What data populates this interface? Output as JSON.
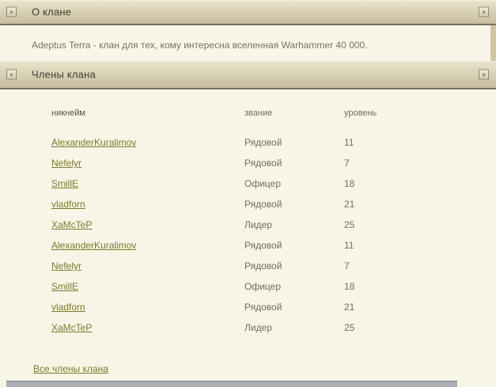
{
  "icons": {
    "close_glyph": "×"
  },
  "colors": {
    "page_background": "#f8f5e6",
    "panel_body": "#f9f6e8",
    "page_edge_tan": "#cfc6a3",
    "header_gradient_top": "#ebe4cd",
    "header_gradient_bottom": "#c7be9d",
    "header_border": "#716f5f",
    "title_text": "#3d3d33",
    "body_text": "#73735f",
    "muted_text": "#6e6e5c",
    "link": "#7a7a2d",
    "bottom_bar": "#a9aeb2"
  },
  "panels": {
    "about": {
      "title": "О клане",
      "description": "Adeptus Terra - клан для тех, кому интересна вселенная Warhammer 40 000."
    },
    "members": {
      "title": "Члены клана",
      "table": {
        "columns": [
          "никнейм",
          "звание",
          "уровень"
        ],
        "rows": [
          {
            "nickname": "AlexanderKuralimov",
            "rank": "Рядовой",
            "level": "11"
          },
          {
            "nickname": "Nefelyr",
            "rank": "Рядовой",
            "level": "7"
          },
          {
            "nickname": "SmillE",
            "rank": "Офицер",
            "level": "18"
          },
          {
            "nickname": "vladforn",
            "rank": "Рядовой",
            "level": "21"
          },
          {
            "nickname": "XaMcTeP",
            "rank": "Лидер",
            "level": "25"
          },
          {
            "nickname": "AlexanderKuralimov",
            "rank": "Рядовой",
            "level": "11"
          },
          {
            "nickname": "Nefelyr",
            "rank": "Рядовой",
            "level": "7"
          },
          {
            "nickname": "SmillE",
            "rank": "Офицер",
            "level": "18"
          },
          {
            "nickname": "vladforn",
            "rank": "Рядовой",
            "level": "21"
          },
          {
            "nickname": "XaMcTeP",
            "rank": "Лидер",
            "level": "25"
          }
        ]
      },
      "footer_link": "Все члены клана"
    }
  }
}
